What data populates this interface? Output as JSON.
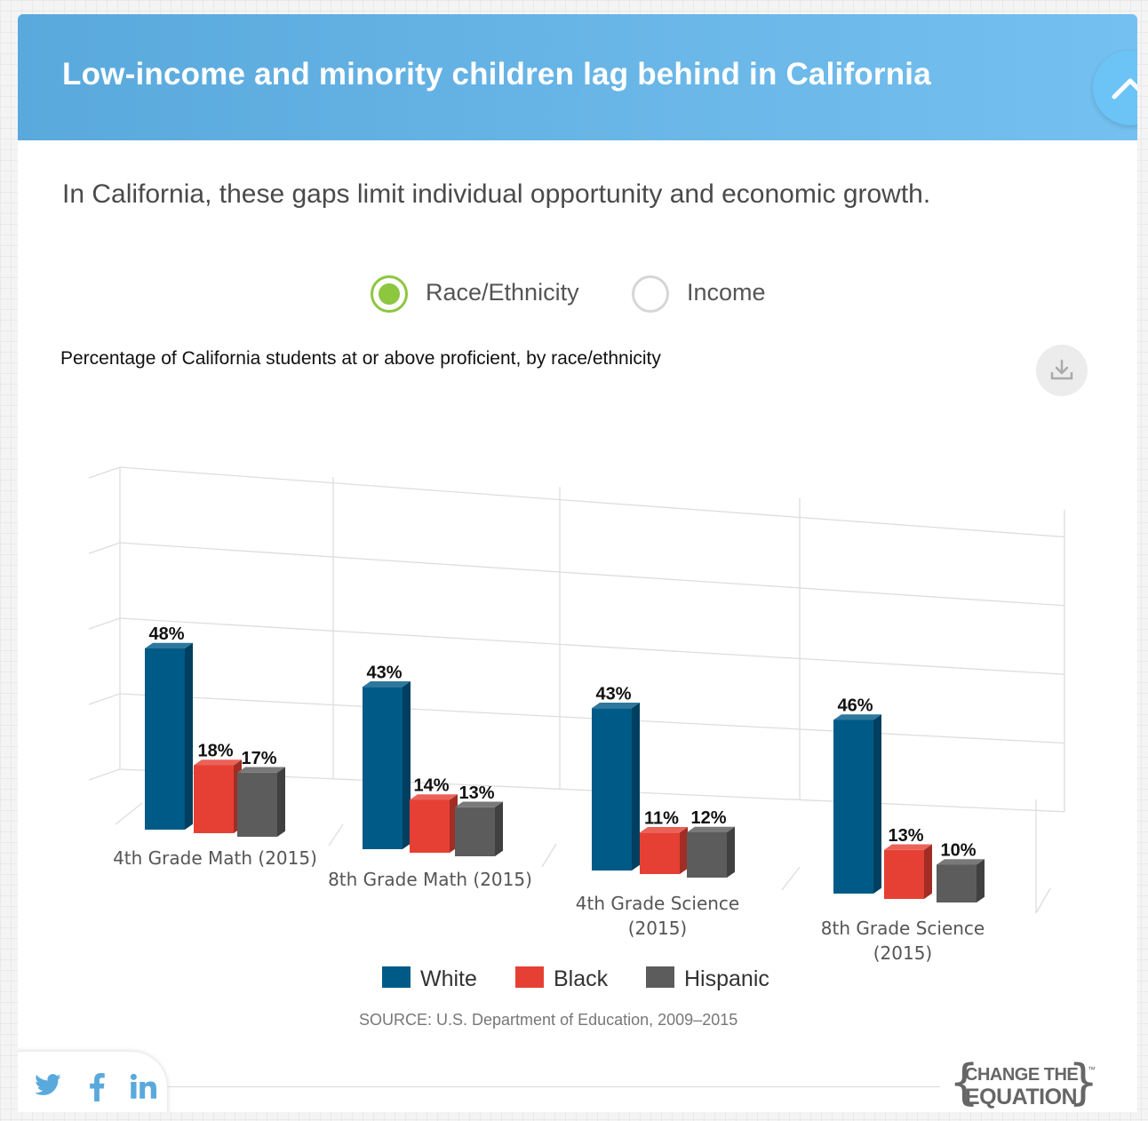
{
  "header": {
    "title": "Low-income and minority children lag behind in California"
  },
  "subtitle": "In California, these gaps limit individual opportunity and economic growth.",
  "toggle": {
    "options": [
      {
        "label": "Race/Ethnicity",
        "selected": true
      },
      {
        "label": "Income",
        "selected": false
      }
    ]
  },
  "icons": {
    "collapse": "chevron-up-icon",
    "download": "download-icon",
    "twitter": "twitter-icon",
    "facebook": "facebook-icon",
    "linkedin": "linkedin-icon"
  },
  "colors": {
    "header": "#62b0e2",
    "selected_radio": "#8dc63f",
    "white": "#005a87",
    "black": "#e64034",
    "hispanic": "#5c5c5c"
  },
  "chart_data": {
    "type": "bar",
    "title": "Percentage of California students at or above proficient, by race/ethnicity",
    "categories": [
      "4th Grade Math (2015)",
      "8th Grade Math (2015)",
      "4th Grade Science (2015)",
      "8th Grade Science (2015)"
    ],
    "series": [
      {
        "name": "White",
        "values": [
          48,
          43,
          43,
          46
        ],
        "color": "#005a87"
      },
      {
        "name": "Black",
        "values": [
          18,
          14,
          11,
          13
        ],
        "color": "#e64034"
      },
      {
        "name": "Hispanic",
        "values": [
          17,
          13,
          12,
          10
        ],
        "color": "#5c5c5c"
      }
    ],
    "value_suffix": "%",
    "ylim": [
      0,
      100
    ],
    "grid": true,
    "legend": "bottom",
    "three_d": true
  },
  "source": "SOURCE: U.S. Department of Education, 2009–2015",
  "logo": {
    "line1": "CHANGE THE",
    "line2": "EQUATION",
    "mark": "™"
  }
}
